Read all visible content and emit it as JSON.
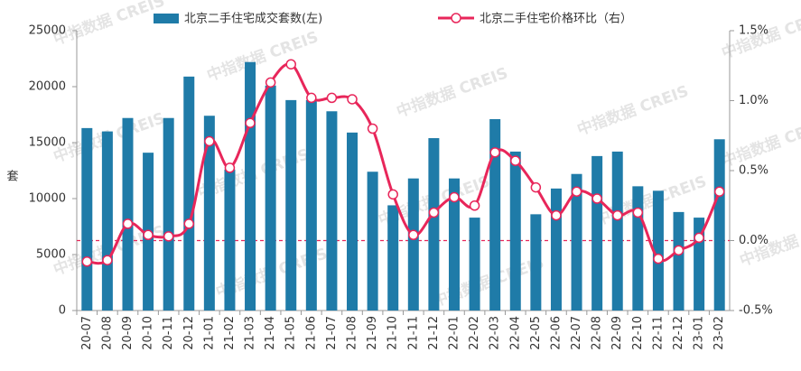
{
  "chart_data": {
    "type": "bar_line",
    "categories": [
      "20-07",
      "20-08",
      "20-09",
      "20-10",
      "20-11",
      "20-12",
      "21-01",
      "21-02",
      "21-03",
      "21-04",
      "21-05",
      "21-06",
      "21-07",
      "21-08",
      "21-09",
      "21-10",
      "21-11",
      "21-12",
      "22-01",
      "22-02",
      "22-03",
      "22-04",
      "22-05",
      "22-06",
      "22-07",
      "22-08",
      "22-09",
      "22-10",
      "22-11",
      "22-12",
      "23-01",
      "23-02"
    ],
    "series": [
      {
        "name": "北京二手住宅成交套数(左)",
        "type": "bar",
        "color": "#1f7ba8",
        "values": [
          16300,
          16000,
          17200,
          14100,
          17200,
          20900,
          17400,
          12600,
          22200,
          20100,
          18800,
          18800,
          17800,
          15900,
          12400,
          9400,
          11800,
          15400,
          11800,
          8300,
          17100,
          14200,
          8600,
          10900,
          12200,
          13800,
          14200,
          11100,
          10700,
          8800,
          8300,
          15300
        ]
      },
      {
        "name": "北京二手住宅价格环比（右）",
        "type": "line",
        "axis": "y2",
        "color": "#e8265a",
        "values": [
          -0.15,
          -0.14,
          0.12,
          0.04,
          0.03,
          0.12,
          0.71,
          0.52,
          0.84,
          1.13,
          1.26,
          1.02,
          1.02,
          1.01,
          0.8,
          0.33,
          0.04,
          0.2,
          0.31,
          0.25,
          0.63,
          0.57,
          0.38,
          0.18,
          0.35,
          0.3,
          0.18,
          0.2,
          -0.13,
          -0.07,
          0.02,
          0.35
        ]
      }
    ],
    "y_label": "套",
    "ylim": [
      0,
      25000
    ],
    "yticks": [
      0,
      5000,
      10000,
      15000,
      20000,
      25000
    ],
    "y2lim": [
      -0.5,
      1.5
    ],
    "y2ticks": [
      {
        "value": -0.5,
        "label": "-0.5%"
      },
      {
        "value": 0,
        "label": "0.0%"
      },
      {
        "value": 0.5,
        "label": "0.5%"
      },
      {
        "value": 1.0,
        "label": "1.0%"
      },
      {
        "value": 1.5,
        "label": "1.5%"
      }
    ],
    "reference_line_y2": 0,
    "reference_color": "#e8265a",
    "watermark": "中指数据 CREIS"
  }
}
